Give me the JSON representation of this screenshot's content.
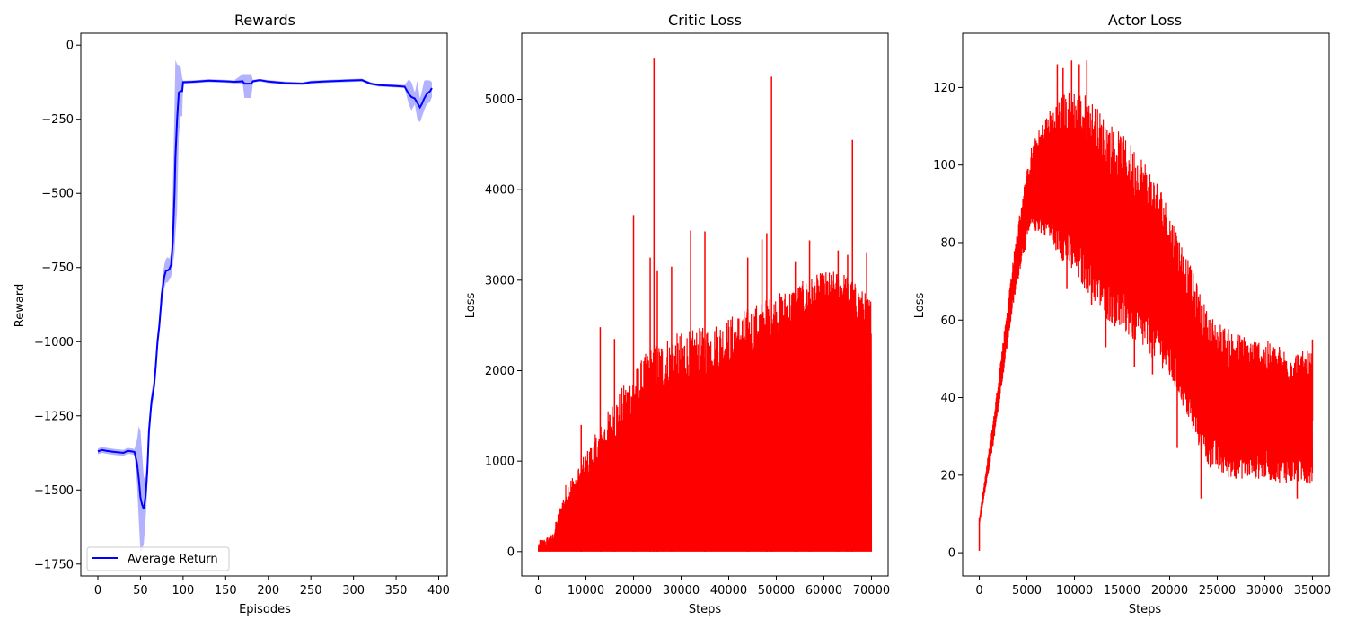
{
  "chart_data": [
    {
      "type": "line",
      "title": "Rewards",
      "xlabel": "Episodes",
      "ylabel": "Reward",
      "xlim": [
        -20,
        410
      ],
      "ylim": [
        -1790,
        40
      ],
      "xticks": [
        0,
        50,
        100,
        150,
        200,
        250,
        300,
        350,
        400
      ],
      "yticks": [
        0,
        -250,
        -500,
        -750,
        -1000,
        -1250,
        -1500,
        -1750
      ],
      "legend": {
        "location": "lower-left",
        "entries": [
          "Average Return"
        ]
      },
      "color_line": "#0000ff",
      "color_band": "#0000ff",
      "series": [
        {
          "name": "Average Return",
          "x": [
            0,
            5,
            10,
            20,
            30,
            35,
            40,
            43,
            46,
            48,
            50,
            52,
            54,
            56,
            58,
            60,
            63,
            66,
            68,
            70,
            72,
            74,
            75,
            78,
            80,
            82,
            84,
            86,
            88,
            90,
            91,
            93,
            95,
            97,
            99,
            100,
            110,
            120,
            130,
            150,
            160,
            170,
            172,
            180,
            182,
            190,
            200,
            220,
            240,
            250,
            270,
            290,
            310,
            320,
            330,
            350,
            360,
            365,
            368,
            372,
            375,
            378,
            380,
            383,
            386,
            390,
            392
          ],
          "mean": [
            -1370,
            -1365,
            -1368,
            -1372,
            -1375,
            -1368,
            -1370,
            -1372,
            -1410,
            -1460,
            -1525,
            -1550,
            -1565,
            -1520,
            -1440,
            -1300,
            -1200,
            -1150,
            -1080,
            -1000,
            -950,
            -880,
            -840,
            -780,
            -760,
            -760,
            -755,
            -740,
            -660,
            -500,
            -380,
            -250,
            -160,
            -155,
            -155,
            -125,
            -124,
            -122,
            -120,
            -122,
            -124,
            -122,
            -130,
            -130,
            -122,
            -118,
            -123,
            -128,
            -130,
            -125,
            -122,
            -120,
            -118,
            -130,
            -135,
            -138,
            -140,
            -165,
            -175,
            -180,
            -195,
            -210,
            -200,
            -180,
            -165,
            -155,
            -145
          ],
          "upper": [
            -1360,
            -1355,
            -1358,
            -1362,
            -1365,
            -1358,
            -1360,
            -1362,
            -1330,
            -1285,
            -1300,
            -1380,
            -1460,
            -1450,
            -1390,
            -1270,
            -1170,
            -1120,
            -1050,
            -970,
            -920,
            -840,
            -800,
            -740,
            -720,
            -715,
            -720,
            -700,
            -480,
            -200,
            -50,
            -65,
            -68,
            -70,
            -110,
            -120,
            -119,
            -117,
            -115,
            -117,
            -119,
            -98,
            -98,
            -98,
            -117,
            -114,
            -118,
            -123,
            -125,
            -120,
            -117,
            -115,
            -113,
            -125,
            -130,
            -133,
            -135,
            -115,
            -125,
            -160,
            -120,
            -180,
            -160,
            -120,
            -118,
            -120,
            -125
          ],
          "lower": [
            -1380,
            -1375,
            -1378,
            -1382,
            -1385,
            -1378,
            -1380,
            -1382,
            -1480,
            -1600,
            -1710,
            -1700,
            -1680,
            -1600,
            -1500,
            -1340,
            -1230,
            -1180,
            -1110,
            -1030,
            -980,
            -910,
            -880,
            -820,
            -800,
            -800,
            -790,
            -780,
            -740,
            -700,
            -640,
            -560,
            -310,
            -240,
            -240,
            -130,
            -129,
            -127,
            -125,
            -127,
            -129,
            -130,
            -178,
            -178,
            -127,
            -122,
            -128,
            -133,
            -135,
            -130,
            -127,
            -125,
            -123,
            -135,
            -140,
            -143,
            -145,
            -200,
            -220,
            -200,
            -250,
            -260,
            -245,
            -220,
            -200,
            -190,
            -175
          ]
        }
      ]
    },
    {
      "type": "line",
      "title": "Critic Loss",
      "xlabel": "Steps",
      "ylabel": "Loss",
      "xlim": [
        -3500,
        73500
      ],
      "ylim": [
        -270,
        5730
      ],
      "xticks": [
        0,
        10000,
        20000,
        30000,
        40000,
        50000,
        60000,
        70000
      ],
      "yticks": [
        0,
        1000,
        2000,
        3000,
        4000,
        5000
      ],
      "color": "#ff0000",
      "envelope_x": [
        0,
        3000,
        6000,
        8000,
        12000,
        16000,
        20000,
        24000,
        28000,
        32000,
        36000,
        40000,
        44000,
        48000,
        52000,
        56000,
        60000,
        64000,
        68000,
        70000
      ],
      "envelope_upper": [
        120,
        200,
        800,
        900,
        1300,
        1700,
        2000,
        2300,
        2400,
        2450,
        2500,
        2600,
        2700,
        2800,
        2900,
        3000,
        3100,
        3100,
        2900,
        2800
      ],
      "envelope_base": [
        0,
        100,
        500,
        600,
        900,
        1200,
        1500,
        1700,
        1800,
        1900,
        1950,
        2000,
        2100,
        2300,
        2400,
        2600,
        2700,
        2700,
        2500,
        2400
      ],
      "spikes": [
        {
          "x": 20000,
          "y": 3720
        },
        {
          "x": 23500,
          "y": 3250
        },
        {
          "x": 24300,
          "y": 5450
        },
        {
          "x": 25000,
          "y": 3100
        },
        {
          "x": 28000,
          "y": 3150
        },
        {
          "x": 32000,
          "y": 3550
        },
        {
          "x": 35000,
          "y": 3540
        },
        {
          "x": 44000,
          "y": 3250
        },
        {
          "x": 47000,
          "y": 3450
        },
        {
          "x": 48000,
          "y": 3520
        },
        {
          "x": 49000,
          "y": 5250
        },
        {
          "x": 54000,
          "y": 3200
        },
        {
          "x": 57000,
          "y": 3440
        },
        {
          "x": 63000,
          "y": 3330
        },
        {
          "x": 65000,
          "y": 3280
        },
        {
          "x": 66000,
          "y": 4550
        },
        {
          "x": 69000,
          "y": 3300
        },
        {
          "x": 13000,
          "y": 2480
        },
        {
          "x": 16000,
          "y": 2350
        },
        {
          "x": 9000,
          "y": 1400
        }
      ]
    },
    {
      "type": "line",
      "title": "Actor Loss",
      "xlabel": "Steps",
      "ylabel": "Loss",
      "xlim": [
        -1750,
        36750
      ],
      "ylim": [
        -6,
        134
      ],
      "xticks": [
        0,
        5000,
        10000,
        15000,
        20000,
        25000,
        30000,
        35000
      ],
      "yticks": [
        0,
        20,
        40,
        60,
        80,
        100,
        120
      ],
      "color": "#ff0000",
      "envelope_x": [
        0,
        500,
        1500,
        2500,
        3500,
        4500,
        5500,
        7000,
        8500,
        10000,
        11500,
        13000,
        15000,
        17000,
        19000,
        21000,
        22500,
        24000,
        26000,
        28000,
        30000,
        32000,
        34000,
        35000
      ],
      "envelope_upper": [
        9,
        18,
        35,
        55,
        75,
        92,
        105,
        113,
        118,
        120,
        118,
        113,
        108,
        103,
        95,
        82,
        72,
        62,
        58,
        56,
        55,
        53,
        52,
        52
      ],
      "envelope_lower": [
        7,
        14,
        28,
        45,
        62,
        75,
        82,
        80,
        74,
        68,
        64,
        58,
        54,
        50,
        46,
        38,
        28,
        20,
        17,
        17,
        17,
        16,
        16,
        16
      ],
      "spikes": [
        {
          "x": 8200,
          "y": 126
        },
        {
          "x": 8800,
          "y": 125
        },
        {
          "x": 9700,
          "y": 127
        },
        {
          "x": 10500,
          "y": 126
        },
        {
          "x": 11300,
          "y": 127
        },
        {
          "x": 9200,
          "y": 68
        },
        {
          "x": 11800,
          "y": 64
        },
        {
          "x": 13300,
          "y": 53
        },
        {
          "x": 16300,
          "y": 48
        },
        {
          "x": 18200,
          "y": 46
        },
        {
          "x": 20800,
          "y": 27
        },
        {
          "x": 23300,
          "y": 14
        },
        {
          "x": 33400,
          "y": 14
        },
        {
          "x": 35000,
          "y": 55
        }
      ]
    }
  ]
}
